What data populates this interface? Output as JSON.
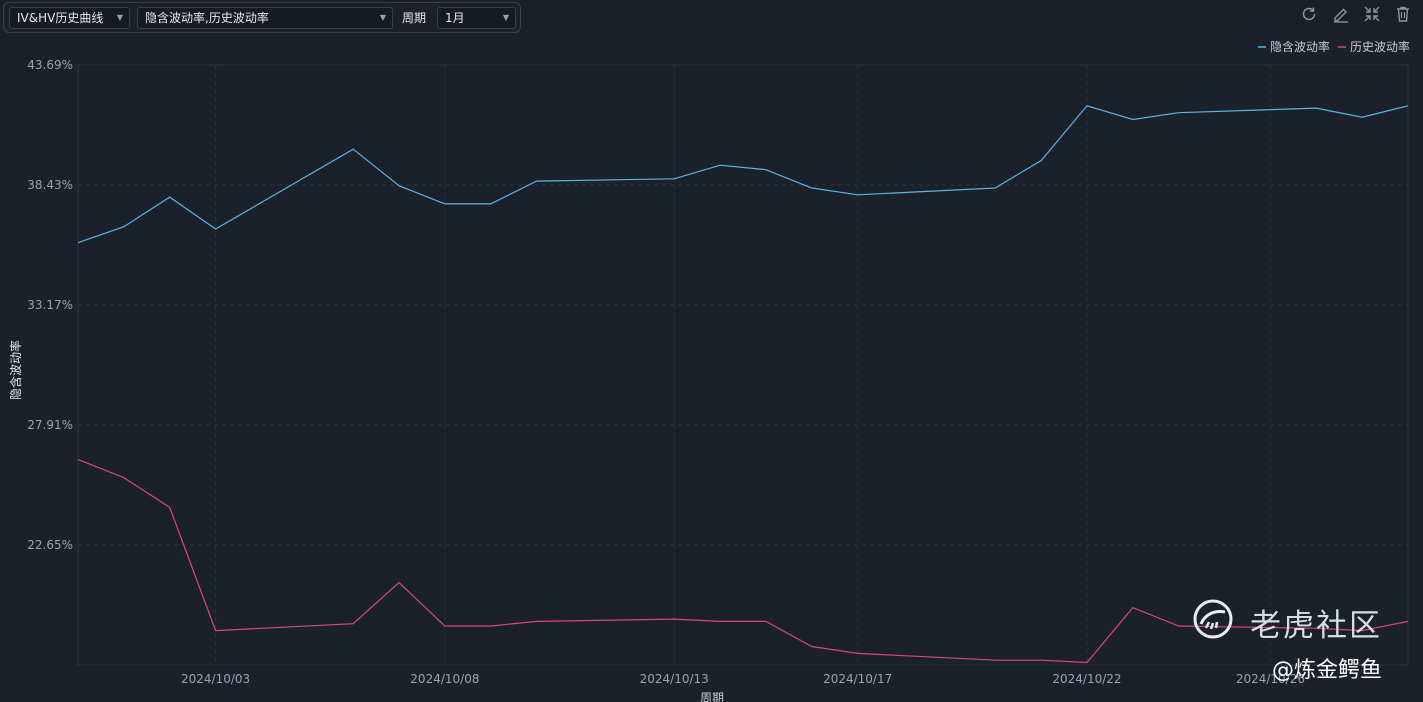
{
  "toolbar": {
    "chart_select": "IV&HV历史曲线",
    "series_select": "隐含波动率,历史波动率",
    "period_label": "周期",
    "period_select": "1月"
  },
  "icons": [
    "refresh-icon",
    "edit-icon",
    "collapse-icon",
    "delete-icon"
  ],
  "watermark": {
    "brand": "老虎社区",
    "author": "@炼金鳄鱼"
  },
  "colors": {
    "iv": "#5ab3e6",
    "hv": "#d9477c",
    "background": "#1b212b",
    "grid": "#2c3440"
  },
  "chart_data": {
    "type": "line",
    "title": "",
    "xlabel": "周期",
    "ylabel": "隐含波动率",
    "ylim": [
      17.39,
      43.69
    ],
    "yticks": [
      43.69,
      38.43,
      33.17,
      27.91,
      22.65
    ],
    "ytick_labels": [
      "43.69%",
      "38.43%",
      "33.17%",
      "27.91%",
      "22.65%"
    ],
    "xtick_labels": [
      "2024/10/03",
      "2024/10/08",
      "2024/10/13",
      "2024/10/17",
      "2024/10/22",
      "2024/10/26"
    ],
    "legend_position": "top-right",
    "grid": true,
    "x": [
      "2024/09/30",
      "2024/10/01",
      "2024/10/02",
      "2024/10/03",
      "2024/10/06",
      "2024/10/07",
      "2024/10/08",
      "2024/10/09",
      "2024/10/10",
      "2024/10/13",
      "2024/10/14",
      "2024/10/15",
      "2024/10/16",
      "2024/10/17",
      "2024/10/20",
      "2024/10/21",
      "2024/10/22",
      "2024/10/23",
      "2024/10/24",
      "2024/10/27",
      "2024/10/28",
      "2024/10/29"
    ],
    "series": [
      {
        "name": "隐含波动率",
        "values": [
          35.9,
          36.6,
          37.9,
          36.5,
          40.0,
          38.4,
          37.6,
          37.6,
          38.6,
          38.7,
          39.3,
          39.1,
          38.3,
          38.0,
          38.3,
          39.5,
          41.9,
          41.3,
          41.6,
          41.8,
          41.4,
          41.9
        ]
      },
      {
        "name": "历史波动率",
        "values": [
          26.4,
          25.6,
          24.3,
          18.9,
          19.2,
          21.0,
          19.1,
          19.1,
          19.3,
          19.4,
          19.3,
          19.3,
          18.2,
          17.9,
          17.6,
          17.6,
          17.5,
          19.9,
          19.1,
          19.0,
          18.9,
          19.3
        ]
      }
    ]
  }
}
